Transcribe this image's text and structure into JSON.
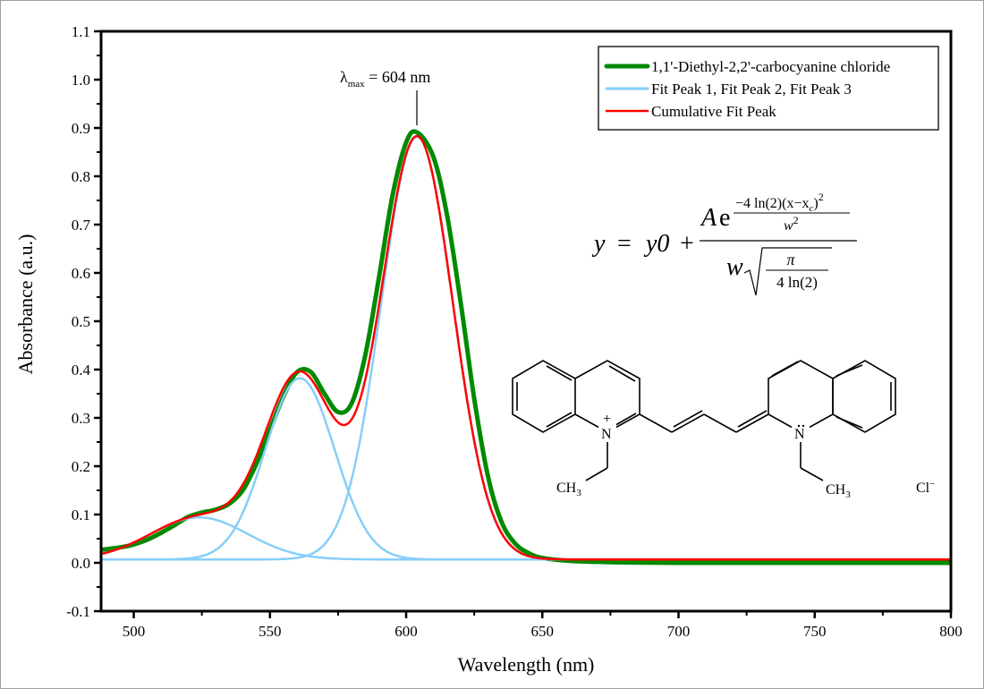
{
  "chart_data": {
    "type": "line",
    "title": "",
    "xlabel": "Wavelength (nm)",
    "ylabel": "Absorbance (a.u.)",
    "xlim": [
      488,
      800
    ],
    "ylim": [
      -0.1,
      1.1
    ],
    "xticks": [
      500,
      550,
      600,
      650,
      700,
      750,
      800
    ],
    "xtick_labels": [
      "500",
      "550",
      "600",
      "650",
      "700",
      "750",
      "800"
    ],
    "yticks": [
      -0.1,
      0.0,
      0.1,
      0.2,
      0.3,
      0.4,
      0.5,
      0.6,
      0.7,
      0.8,
      0.9,
      1.0,
      1.1
    ],
    "ytick_labels": [
      "-0.1",
      "0.0",
      "0.1",
      "0.2",
      "0.3",
      "0.4",
      "0.5",
      "0.6",
      "0.7",
      "0.8",
      "0.9",
      "1.0",
      "1.1"
    ],
    "grid": false,
    "legend_position": "upper right",
    "baseline_y0": 0.007,
    "fit_peaks": [
      {
        "name": "Fit Peak 1",
        "xc": 524,
        "height": 0.087,
        "fwhm": 42
      },
      {
        "name": "Fit Peak 2",
        "xc": 561,
        "height": 0.375,
        "fwhm": 30
      },
      {
        "name": "Fit Peak 3",
        "xc": 604,
        "height": 0.875,
        "fwhm": 31
      }
    ],
    "x": [
      488,
      495,
      500,
      505,
      510,
      515,
      520,
      525,
      530,
      535,
      540,
      545,
      550,
      555,
      560,
      565,
      570,
      575,
      580,
      585,
      590,
      595,
      600,
      604,
      610,
      615,
      620,
      625,
      630,
      635,
      640,
      645,
      650,
      660,
      670,
      680,
      700,
      750,
      800
    ],
    "series": [
      {
        "name": "1,1'-Diethyl-2,2'-carbocyanine chloride",
        "color": "#008a00",
        "values": [
          0.027,
          0.032,
          0.038,
          0.048,
          0.062,
          0.078,
          0.095,
          0.104,
          0.11,
          0.122,
          0.15,
          0.205,
          0.275,
          0.345,
          0.395,
          0.395,
          0.35,
          0.312,
          0.33,
          0.43,
          0.59,
          0.76,
          0.87,
          0.891,
          0.84,
          0.72,
          0.54,
          0.34,
          0.18,
          0.085,
          0.04,
          0.02,
          0.01,
          0.004,
          0.002,
          0.001,
          0.0,
          0.0,
          0.0
        ]
      },
      {
        "name": "Fit Peak 1, Fit Peak 2, Fit Peak 3",
        "color": "#87cefa",
        "values": []
      },
      {
        "name": "Cumulative Fit Peak",
        "color": "#ff0000",
        "values": [
          0.018,
          0.028,
          0.036,
          0.047,
          0.06,
          0.075,
          0.09,
          0.1,
          0.107,
          0.12,
          0.148,
          0.2,
          0.27,
          0.34,
          0.388,
          0.388,
          0.345,
          0.306,
          0.325,
          0.425,
          0.585,
          0.755,
          0.862,
          0.881,
          0.835,
          0.715,
          0.535,
          0.335,
          0.175,
          0.08,
          0.035,
          0.017,
          0.01,
          0.007,
          0.007,
          0.007,
          0.007,
          0.007,
          0.007
        ]
      }
    ],
    "annotations": [
      {
        "text": "λmax = 604 nm",
        "x": 604,
        "y": 0.91
      }
    ]
  },
  "legend": {
    "items": [
      {
        "label": "1,1'-Diethyl-2,2'-carbocyanine chloride",
        "color": "#008a00"
      },
      {
        "label": "Fit Peak 1, Fit Peak 2, Fit Peak 3",
        "color": "#87cefa"
      },
      {
        "label": "Cumulative Fit Peak",
        "color": "#ff0000"
      }
    ]
  },
  "axes": {
    "xlabel": "Wavelength (nm)",
    "ylabel": "Absorbance (a.u.)"
  },
  "annotation": {
    "lambda": "λ",
    "sub": "max",
    "rest": " = 604 nm"
  },
  "equation": {
    "lhs": "y",
    "eq": "=",
    "y0": "y0",
    "plus": "+",
    "A": "A",
    "e": "e",
    "exp_num": "−4 ln(2)(x−x",
    "exp_sub": "c",
    "exp_num_end": ")",
    "exp_pow": "2",
    "exp_den": "w",
    "exp_den_pow": "2",
    "den_w": "w",
    "pi": "π",
    "sqrt_den": "4 ln(2)"
  },
  "molecule": {
    "n_plus": "N",
    "plus": "+",
    "n_neutral": "N",
    "ch3_left": "CH",
    "ch3_right": "CH",
    "sub3": "3",
    "counterion": "Cl",
    "counterion_charge": "−"
  }
}
